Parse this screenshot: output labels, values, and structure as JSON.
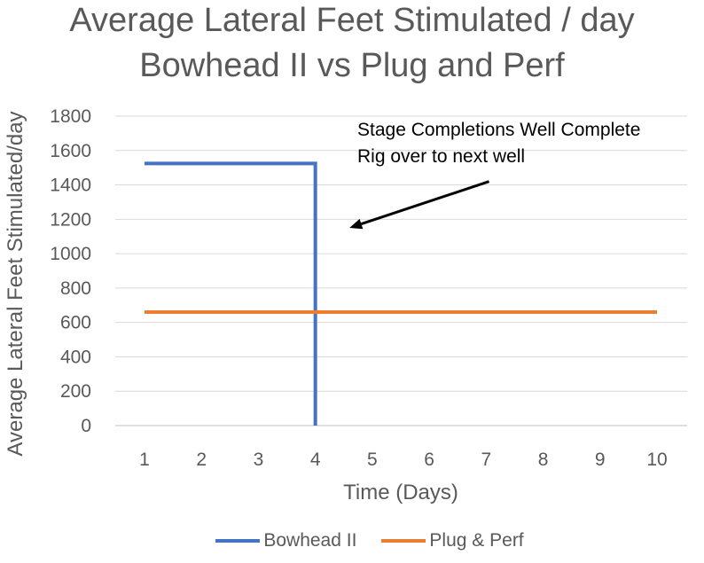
{
  "chart_data": {
    "type": "line",
    "title_line1": "Average Lateral Feet Stimulated / day",
    "title_line2": "Bowhead II vs Plug and Perf",
    "xlabel": "Time (Days)",
    "ylabel": "Average Lateral Feet Stimulated/day",
    "categories": [
      "1",
      "2",
      "3",
      "4",
      "5",
      "6",
      "7",
      "8",
      "9",
      "10"
    ],
    "x_range": [
      1,
      10
    ],
    "ylim": [
      0,
      1800
    ],
    "y_ticks": [
      0,
      200,
      400,
      600,
      800,
      1000,
      1200,
      1400,
      1600,
      1800
    ],
    "y_tick_labels": [
      "0",
      "200",
      "400",
      "600",
      "800",
      "1000",
      "1200",
      "1400",
      "1600",
      "1800"
    ],
    "grid": true,
    "series": [
      {
        "name": "Bowhead II",
        "color": "#4472C4",
        "points": [
          [
            1,
            1525
          ],
          [
            4,
            1525
          ],
          [
            4,
            0
          ]
        ]
      },
      {
        "name": "Plug & Perf",
        "color": "#ED7D31",
        "points": [
          [
            1,
            660
          ],
          [
            10,
            660
          ]
        ]
      }
    ],
    "annotation": {
      "line1": "Stage Completions Well Complete",
      "line2": "Rig over to next well",
      "arrow_from": [
        7.05,
        1420
      ],
      "arrow_to": [
        4.6,
        1150
      ]
    },
    "legend_position": "bottom"
  }
}
